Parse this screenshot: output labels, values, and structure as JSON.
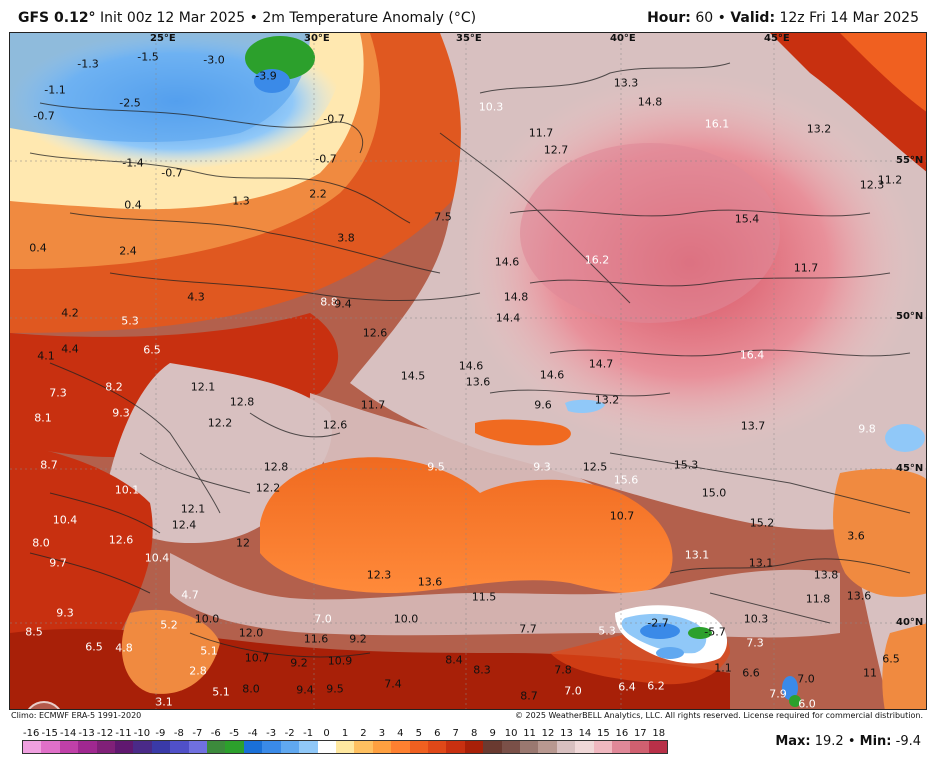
{
  "header": {
    "model": "GFS 0.12°",
    "init": " Init 00z 12 Mar 2025",
    "separator": " • ",
    "field": "2m Temperature Anomaly (°C)",
    "hour_label": "Hour:",
    "hour_value": " 60",
    "valid_label": "Valid:",
    "valid_value": " 12z Fri 14 Mar 2025"
  },
  "grid_labels": {
    "lon25": "25°E",
    "lon30": "30°E",
    "lon35": "35°E",
    "lon40": "40°E",
    "lon45": "45°E",
    "lat55": "55°N",
    "lat50": "50°N",
    "lat45": "45°N",
    "lat40": "40°N"
  },
  "values": [
    {
      "t": "-1.3",
      "c": "dark"
    },
    {
      "t": "-1.5",
      "c": "dark"
    },
    {
      "t": "-3.0",
      "c": "dark"
    },
    {
      "t": "-3.9",
      "c": "dark"
    },
    {
      "t": "-1.1",
      "c": "dark"
    },
    {
      "t": "-2.5",
      "c": "dark"
    },
    {
      "t": "-0.7",
      "c": "dark"
    },
    {
      "t": "-0.7",
      "c": "dark"
    },
    {
      "t": "-1.4",
      "c": "dark"
    },
    {
      "t": "-0.7",
      "c": "dark"
    },
    {
      "t": "-0.7",
      "c": "dark"
    },
    {
      "t": "0.4",
      "c": "dark"
    },
    {
      "t": "1.3",
      "c": "dark"
    },
    {
      "t": "2.2",
      "c": "dark"
    },
    {
      "t": "0.4",
      "c": "dark"
    },
    {
      "t": "2.4",
      "c": "dark"
    },
    {
      "t": "3.8",
      "c": "dark"
    },
    {
      "t": "7.5",
      "c": "dark"
    },
    {
      "t": "4.3",
      "c": "dark"
    },
    {
      "t": "8.8",
      "c": "white"
    },
    {
      "t": "9.4",
      "c": "dark"
    },
    {
      "t": "4.2",
      "c": "dark"
    },
    {
      "t": "5.3",
      "c": "white"
    },
    {
      "t": "4.1",
      "c": "dark"
    },
    {
      "t": "4.4",
      "c": "dark"
    },
    {
      "t": "6.5",
      "c": "white"
    },
    {
      "t": "7.3",
      "c": "white"
    },
    {
      "t": "8.2",
      "c": "white"
    },
    {
      "t": "12.1",
      "c": "dark"
    },
    {
      "t": "8.1",
      "c": "white"
    },
    {
      "t": "9.3",
      "c": "white"
    },
    {
      "t": "12.8",
      "c": "dark"
    },
    {
      "t": "12.2",
      "c": "dark"
    },
    {
      "t": "8.7",
      "c": "white"
    },
    {
      "t": "10.1",
      "c": "white"
    },
    {
      "t": "12.8",
      "c": "dark"
    },
    {
      "t": "12.2",
      "c": "dark"
    },
    {
      "t": "10.4",
      "c": "white"
    },
    {
      "t": "12.1",
      "c": "dark"
    },
    {
      "t": "12.4",
      "c": "dark"
    },
    {
      "t": "8.0",
      "c": "white"
    },
    {
      "t": "12.6",
      "c": "white"
    },
    {
      "t": "12",
      "c": "dark"
    },
    {
      "t": "9.7",
      "c": "white"
    },
    {
      "t": "10.4",
      "c": "white"
    },
    {
      "t": "9.3",
      "c": "white"
    },
    {
      "t": "8.5",
      "c": "white"
    },
    {
      "t": "6.5",
      "c": "white"
    },
    {
      "t": "4.8",
      "c": "white"
    },
    {
      "t": "10.3",
      "c": "white"
    },
    {
      "t": "13.3",
      "c": "dark"
    },
    {
      "t": "14.8",
      "c": "dark"
    },
    {
      "t": "16.1",
      "c": "white"
    },
    {
      "t": "13.2",
      "c": "dark"
    },
    {
      "t": "11.7",
      "c": "dark"
    },
    {
      "t": "12.7",
      "c": "dark"
    },
    {
      "t": "12.3",
      "c": "dark"
    },
    {
      "t": "11.2",
      "c": "dark"
    },
    {
      "t": "15.4",
      "c": "dark"
    },
    {
      "t": "14.6",
      "c": "dark"
    },
    {
      "t": "16.2",
      "c": "white"
    },
    {
      "t": "11.7",
      "c": "dark"
    },
    {
      "t": "14.8",
      "c": "dark"
    },
    {
      "t": "14.4",
      "c": "dark"
    },
    {
      "t": "12.6",
      "c": "dark"
    },
    {
      "t": "16.4",
      "c": "white"
    },
    {
      "t": "14.5",
      "c": "dark"
    },
    {
      "t": "14.6",
      "c": "dark"
    },
    {
      "t": "13.6",
      "c": "dark"
    },
    {
      "t": "14.6",
      "c": "dark"
    },
    {
      "t": "14.7",
      "c": "dark"
    },
    {
      "t": "11.7",
      "c": "dark"
    },
    {
      "t": "12.6",
      "c": "dark"
    },
    {
      "t": "9.6",
      "c": "dark"
    },
    {
      "t": "13.2",
      "c": "dark"
    },
    {
      "t": "13.7",
      "c": "dark"
    },
    {
      "t": "9.8",
      "c": "white"
    },
    {
      "t": "9.5",
      "c": "white"
    },
    {
      "t": "9.3",
      "c": "white"
    },
    {
      "t": "12.5",
      "c": "dark"
    },
    {
      "t": "15.6",
      "c": "white"
    },
    {
      "t": "15.3",
      "c": "dark"
    },
    {
      "t": "15.0",
      "c": "dark"
    },
    {
      "t": "10.7",
      "c": "dark"
    },
    {
      "t": "15.2",
      "c": "dark"
    },
    {
      "t": "3.6",
      "c": "dark"
    },
    {
      "t": "13.1",
      "c": "white"
    },
    {
      "t": "13.1",
      "c": "dark"
    },
    {
      "t": "12.3",
      "c": "dark"
    },
    {
      "t": "13.6",
      "c": "dark"
    },
    {
      "t": "11.5",
      "c": "dark"
    },
    {
      "t": "13.8",
      "c": "dark"
    },
    {
      "t": "11.8",
      "c": "dark"
    },
    {
      "t": "13.6",
      "c": "dark"
    },
    {
      "t": "4.7",
      "c": "white"
    },
    {
      "t": "5.2",
      "c": "white"
    },
    {
      "t": "10.0",
      "c": "dark"
    },
    {
      "t": "7.0",
      "c": "white"
    },
    {
      "t": "10.0",
      "c": "dark"
    },
    {
      "t": "7.7",
      "c": "dark"
    },
    {
      "t": "5.3",
      "c": "white"
    },
    {
      "t": "-2.7",
      "c": "dark"
    },
    {
      "t": "-5.7",
      "c": "dark"
    },
    {
      "t": "10.3",
      "c": "dark"
    },
    {
      "t": "12.0",
      "c": "dark"
    },
    {
      "t": "11.6",
      "c": "dark"
    },
    {
      "t": "9.2",
      "c": "dark"
    },
    {
      "t": "7.3",
      "c": "white"
    },
    {
      "t": "5.1",
      "c": "white"
    },
    {
      "t": "10.7",
      "c": "dark"
    },
    {
      "t": "9.2",
      "c": "dark"
    },
    {
      "t": "10.9",
      "c": "dark"
    },
    {
      "t": "8.4",
      "c": "dark"
    },
    {
      "t": "8.3",
      "c": "dark"
    },
    {
      "t": "7.8",
      "c": "dark"
    },
    {
      "t": "1.1",
      "c": "dark"
    },
    {
      "t": "6.6",
      "c": "dark"
    },
    {
      "t": "6.5",
      "c": "dark"
    },
    {
      "t": "2.8",
      "c": "white"
    },
    {
      "t": "7.0",
      "c": "dark"
    },
    {
      "t": "11",
      "c": "dark"
    },
    {
      "t": "5.1",
      "c": "white"
    },
    {
      "t": "8.0",
      "c": "dark"
    },
    {
      "t": "9.4",
      "c": "dark"
    },
    {
      "t": "9.5",
      "c": "dark"
    },
    {
      "t": "7.4",
      "c": "dark"
    },
    {
      "t": "8.7",
      "c": "dark"
    },
    {
      "t": "7.0",
      "c": "white"
    },
    {
      "t": "6.4",
      "c": "white"
    },
    {
      "t": "6.2",
      "c": "white"
    },
    {
      "t": "7.9",
      "c": "white"
    },
    {
      "t": "6.0",
      "c": "white"
    },
    {
      "t": "3.1",
      "c": "white"
    }
  ],
  "footer": {
    "climo": "Climo: ECMWF ERA-5 1991-2020",
    "copyright": "© 2025 WeatherBELL Analytics, LLC. All rights reserved. License required for commercial distribution."
  },
  "colorbar": {
    "ticks": [
      "-16",
      "-15",
      "-14",
      "-13",
      "-12",
      "-11",
      "-10",
      "-9",
      "-8",
      "-7",
      "-6",
      "-5",
      "-4",
      "-3",
      "-2",
      "-1",
      "0",
      "1",
      "2",
      "3",
      "4",
      "5",
      "6",
      "7",
      "8",
      "9",
      "10",
      "11",
      "12",
      "13",
      "14",
      "15",
      "16",
      "17",
      "18"
    ],
    "colors": [
      "#f0a0e0",
      "#e070c8",
      "#c040a8",
      "#a02890",
      "#802078",
      "#601870",
      "#4a2a88",
      "#3a3aa8",
      "#5050c8",
      "#7070e0",
      "#3c8a3c",
      "#2ca02c",
      "#1a70d8",
      "#3a8ae8",
      "#60a8f0",
      "#90c8f8",
      "#ffffff",
      "#ffe8a0",
      "#ffc060",
      "#ffa040",
      "#ff8030",
      "#f06020",
      "#e04818",
      "#c83010",
      "#a82008",
      "#6a3a30",
      "#7a5048",
      "#9a7870",
      "#b89890",
      "#d8c0c0",
      "#f0d8d8",
      "#f0b8c0",
      "#e08898",
      "#d06070",
      "#b83048"
    ]
  },
  "maxmin": {
    "max_label": "Max:",
    "max_value": " 19.2",
    "sep": " • ",
    "min_label": "Min:",
    "min_value": " -9.4"
  }
}
